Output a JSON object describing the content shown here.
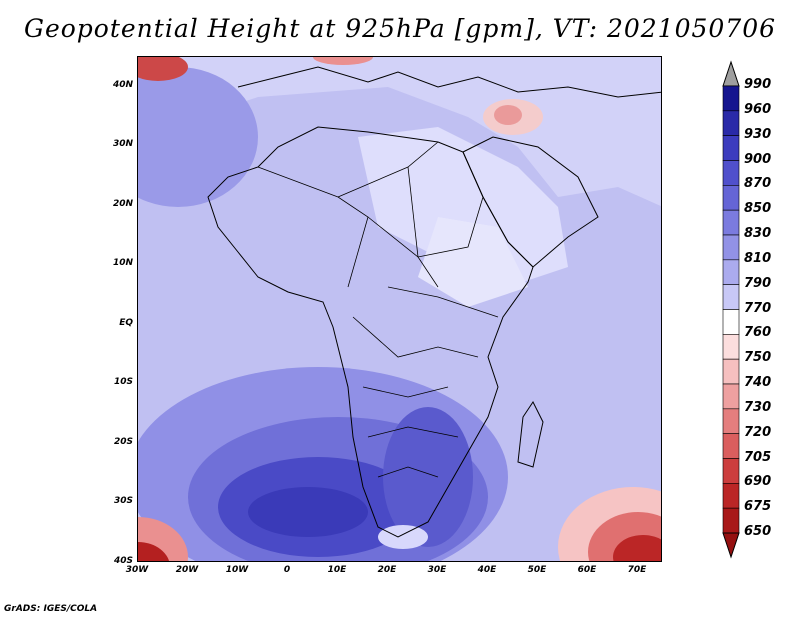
{
  "title": "Geopotential Height at 925hPa [gpm], VT: 2021050706",
  "credit": "GrADS: IGES/COLA",
  "map": {
    "lon_range": [
      -30,
      75
    ],
    "lat_range": [
      -40,
      45
    ],
    "lat_labels": [
      "40N",
      "30N",
      "20N",
      "10N",
      "EQ",
      "10S",
      "20S",
      "30S",
      "40S"
    ],
    "lat_values": [
      40,
      30,
      20,
      10,
      0,
      -10,
      -20,
      -30,
      -40
    ],
    "lon_labels": [
      "30W",
      "20W",
      "10W",
      "0",
      "10E",
      "20E",
      "30E",
      "40E",
      "50E",
      "60E",
      "70E"
    ],
    "lon_values": [
      -30,
      -20,
      -10,
      0,
      10,
      20,
      30,
      40,
      50,
      60,
      70
    ]
  },
  "colorbar": {
    "levels": [
      "990",
      "960",
      "930",
      "900",
      "870",
      "850",
      "830",
      "810",
      "790",
      "770",
      "760",
      "750",
      "740",
      "730",
      "720",
      "705",
      "690",
      "675",
      "650"
    ],
    "colors": [
      "#9f9f9f",
      "#15158f",
      "#2a2aa8",
      "#3c3cbe",
      "#5050cc",
      "#6565d6",
      "#7b7bdf",
      "#9292e6",
      "#ababee",
      "#c8c8f6",
      "#ffffff",
      "#fcdede",
      "#f6c0c0",
      "#eea0a0",
      "#e47e7e",
      "#da5e5e",
      "#cc3e3e",
      "#bb2626",
      "#a81818",
      "#951010"
    ]
  }
}
